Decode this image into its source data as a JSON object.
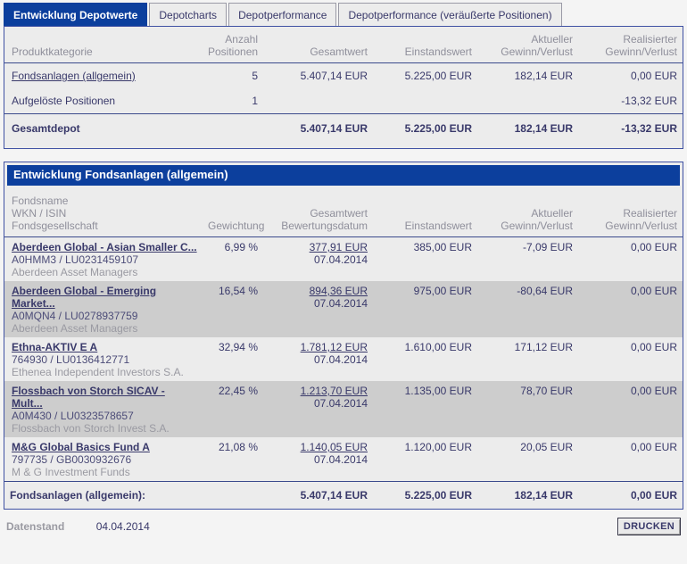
{
  "tabs": [
    {
      "label": "Entwicklung Depotwerte",
      "active": true
    },
    {
      "label": "Depotcharts",
      "active": false
    },
    {
      "label": "Depotperformance",
      "active": false
    },
    {
      "label": "Depotperformance (veräußerte Positionen)",
      "active": false
    }
  ],
  "summary": {
    "col_headers": [
      "Produktkategorie",
      "Anzahl\nPositionen",
      "Gesamtwert",
      "Einstandswert",
      "Aktueller\nGewinn/Verlust",
      "Realisierter\nGewinn/Verlust"
    ],
    "rows": [
      {
        "category": "Fondsanlagen (allgemein)",
        "positions": "5",
        "gesamtwert": "5.407,14 EUR",
        "einstandswert": "5.225,00 EUR",
        "aktueller": "182,14 EUR",
        "realisierter": "0,00 EUR"
      },
      {
        "category": "Aufgelöste Positionen",
        "positions": "1",
        "gesamtwert": "",
        "einstandswert": "",
        "aktueller": "",
        "realisierter": "-13,32 EUR"
      }
    ],
    "total": {
      "label": "Gesamtdepot",
      "gesamtwert": "5.407,14 EUR",
      "einstandswert": "5.225,00 EUR",
      "aktueller": "182,14 EUR",
      "realisierter": "-13,32 EUR"
    }
  },
  "funds": {
    "title": "Entwicklung Fondsanlagen (allgemein)",
    "col_headers": [
      "Fondsname\nWKN / ISIN\nFondsgesellschaft",
      "Gewichtung",
      "Gesamtwert\nBewertungsdatum",
      "Einstandswert",
      "Aktueller\nGewinn/Verlust",
      "Realisierter\nGewinn/Verlust"
    ],
    "rows": [
      {
        "name": "Aberdeen Global - Asian Smaller C...",
        "wkn_isin": "A0HMM3 /  LU0231459107",
        "gesellschaft": "Aberdeen Asset Managers",
        "gewichtung": "6,99 %",
        "gesamtwert": "377,91 EUR",
        "datum": "07.04.2014",
        "einstandswert": "385,00 EUR",
        "aktueller": "-7,09 EUR",
        "realisierter": "0,00 EUR"
      },
      {
        "name": "Aberdeen Global - Emerging Market...",
        "wkn_isin": "A0MQN4 /  LU0278937759",
        "gesellschaft": "Aberdeen Asset Managers",
        "gewichtung": "16,54 %",
        "gesamtwert": "894,36 EUR",
        "datum": "07.04.2014",
        "einstandswert": "975,00 EUR",
        "aktueller": "-80,64 EUR",
        "realisierter": "0,00 EUR"
      },
      {
        "name": "Ethna-AKTIV E A",
        "wkn_isin": "764930 /  LU0136412771",
        "gesellschaft": "Ethenea Independent Investors S.A.",
        "gewichtung": "32,94 %",
        "gesamtwert": "1.781,12 EUR",
        "datum": "07.04.2014",
        "einstandswert": "1.610,00 EUR",
        "aktueller": "171,12 EUR",
        "realisierter": "0,00 EUR"
      },
      {
        "name": "Flossbach von Storch SICAV - Mult...",
        "wkn_isin": "A0M430 /  LU0323578657",
        "gesellschaft": "Flossbach von Storch Invest S.A.",
        "gewichtung": "22,45 %",
        "gesamtwert": "1.213,70 EUR",
        "datum": "07.04.2014",
        "einstandswert": "1.135,00 EUR",
        "aktueller": "78,70 EUR",
        "realisierter": "0,00 EUR"
      },
      {
        "name": "M&G Global Basics Fund A",
        "wkn_isin": "797735 /  GB0030932676",
        "gesellschaft": "M & G Investment Funds",
        "gewichtung": "21,08 %",
        "gesamtwert": "1.140,05 EUR",
        "datum": "07.04.2014",
        "einstandswert": "1.120,00 EUR",
        "aktueller": "20,05 EUR",
        "realisierter": "0,00 EUR"
      }
    ],
    "total": {
      "label": "Fondsanlagen (allgemein):",
      "gesamtwert": "5.407,14 EUR",
      "einstandswert": "5.225,00 EUR",
      "aktueller": "182,14 EUR",
      "realisierter": "0,00 EUR"
    }
  },
  "footer": {
    "datenstand_label": "Datenstand",
    "datenstand_value": "04.04.2014",
    "drucken_label": "DRUCKEN"
  },
  "colors": {
    "accent_blue": "#0c3f9d",
    "panel_background": "#ececec",
    "stripe_background": "#cdcdcd",
    "text_navy": "#39396a",
    "text_gray": "#9a9aa2"
  }
}
